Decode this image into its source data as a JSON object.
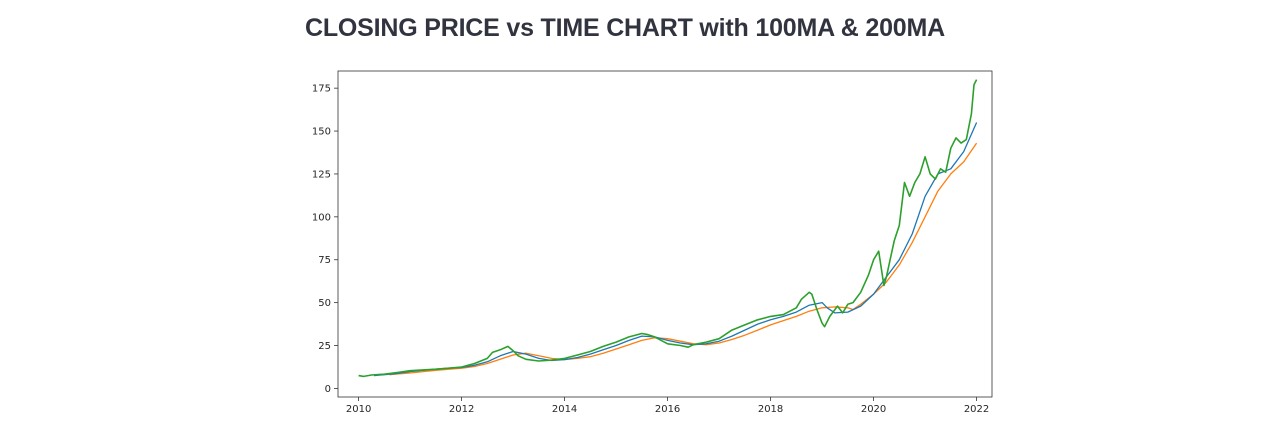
{
  "page": {
    "title": "CLOSING PRICE vs TIME CHART with 100MA & 200MA"
  },
  "chart_data": {
    "type": "line",
    "title": "",
    "xlabel": "",
    "ylabel": "",
    "xlim": [
      2009.6,
      2022.3
    ],
    "ylim": [
      -5,
      185
    ],
    "grid": false,
    "legend": "none",
    "x_ticks": [
      2010,
      2012,
      2014,
      2016,
      2018,
      2020,
      2022
    ],
    "y_ticks": [
      0,
      25,
      50,
      75,
      100,
      125,
      150,
      175
    ],
    "x_tick_labels": [
      "2010",
      "2012",
      "2014",
      "2016",
      "2018",
      "2020",
      "2022"
    ],
    "y_tick_labels": [
      "0",
      "25",
      "50",
      "75",
      "100",
      "125",
      "150",
      "175"
    ],
    "series": [
      {
        "color": "#2ca02c",
        "points": [
          [
            2010.0,
            7.5
          ],
          [
            2010.1,
            7.0
          ],
          [
            2010.25,
            7.8
          ],
          [
            2010.5,
            8.3
          ],
          [
            2010.75,
            9.3
          ],
          [
            2011.0,
            10.3
          ],
          [
            2011.25,
            10.8
          ],
          [
            2011.5,
            11.2
          ],
          [
            2011.75,
            11.8
          ],
          [
            2012.0,
            12.5
          ],
          [
            2012.25,
            14.5
          ],
          [
            2012.5,
            17.5
          ],
          [
            2012.6,
            21.0
          ],
          [
            2012.75,
            22.5
          ],
          [
            2012.9,
            24.5
          ],
          [
            2013.0,
            22.0
          ],
          [
            2013.1,
            19.0
          ],
          [
            2013.25,
            17.0
          ],
          [
            2013.5,
            16.0
          ],
          [
            2013.75,
            16.5
          ],
          [
            2014.0,
            17.5
          ],
          [
            2014.25,
            19.5
          ],
          [
            2014.5,
            21.5
          ],
          [
            2014.75,
            24.5
          ],
          [
            2015.0,
            27.0
          ],
          [
            2015.25,
            30.0
          ],
          [
            2015.5,
            32.0
          ],
          [
            2015.6,
            31.5
          ],
          [
            2015.75,
            30.0
          ],
          [
            2016.0,
            26.0
          ],
          [
            2016.25,
            25.0
          ],
          [
            2016.4,
            24.0
          ],
          [
            2016.5,
            25.5
          ],
          [
            2016.75,
            27.0
          ],
          [
            2017.0,
            29.0
          ],
          [
            2017.25,
            34.0
          ],
          [
            2017.5,
            37.0
          ],
          [
            2017.75,
            40.0
          ],
          [
            2018.0,
            42.0
          ],
          [
            2018.25,
            43.0
          ],
          [
            2018.5,
            47.0
          ],
          [
            2018.6,
            52.0
          ],
          [
            2018.75,
            56.0
          ],
          [
            2018.8,
            55.0
          ],
          [
            2018.9,
            46.0
          ],
          [
            2019.0,
            38.0
          ],
          [
            2019.05,
            36.0
          ],
          [
            2019.15,
            42.0
          ],
          [
            2019.3,
            48.0
          ],
          [
            2019.4,
            44.0
          ],
          [
            2019.5,
            49.0
          ],
          [
            2019.6,
            50.0
          ],
          [
            2019.75,
            56.0
          ],
          [
            2019.9,
            66.0
          ],
          [
            2020.0,
            75.0
          ],
          [
            2020.1,
            80.0
          ],
          [
            2020.2,
            60.0
          ],
          [
            2020.25,
            65.0
          ],
          [
            2020.4,
            86.0
          ],
          [
            2020.5,
            95.0
          ],
          [
            2020.6,
            120.0
          ],
          [
            2020.7,
            112.0
          ],
          [
            2020.8,
            120.0
          ],
          [
            2020.9,
            125.0
          ],
          [
            2021.0,
            135.0
          ],
          [
            2021.1,
            125.0
          ],
          [
            2021.2,
            122.0
          ],
          [
            2021.3,
            128.0
          ],
          [
            2021.4,
            126.0
          ],
          [
            2021.5,
            140.0
          ],
          [
            2021.6,
            146.0
          ],
          [
            2021.7,
            143.0
          ],
          [
            2021.8,
            145.0
          ],
          [
            2021.9,
            160.0
          ],
          [
            2021.95,
            177.0
          ],
          [
            2022.0,
            180.0
          ]
        ]
      },
      {
        "color": "#1f77b4",
        "points": [
          [
            2010.3,
            7.5
          ],
          [
            2010.5,
            8.0
          ],
          [
            2010.75,
            8.7
          ],
          [
            2011.0,
            9.8
          ],
          [
            2011.25,
            10.5
          ],
          [
            2011.5,
            11.2
          ],
          [
            2011.75,
            11.8
          ],
          [
            2012.0,
            12.2
          ],
          [
            2012.25,
            13.5
          ],
          [
            2012.5,
            15.5
          ],
          [
            2012.75,
            19.0
          ],
          [
            2013.0,
            21.5
          ],
          [
            2013.25,
            20.0
          ],
          [
            2013.5,
            17.5
          ],
          [
            2013.75,
            16.3
          ],
          [
            2014.0,
            16.8
          ],
          [
            2014.25,
            18.0
          ],
          [
            2014.5,
            20.0
          ],
          [
            2014.75,
            22.5
          ],
          [
            2015.0,
            25.0
          ],
          [
            2015.25,
            28.0
          ],
          [
            2015.5,
            30.5
          ],
          [
            2015.75,
            30.0
          ],
          [
            2016.0,
            28.0
          ],
          [
            2016.25,
            26.5
          ],
          [
            2016.5,
            25.5
          ],
          [
            2016.75,
            26.0
          ],
          [
            2017.0,
            27.5
          ],
          [
            2017.25,
            30.5
          ],
          [
            2017.5,
            34.0
          ],
          [
            2017.75,
            37.5
          ],
          [
            2018.0,
            40.0
          ],
          [
            2018.25,
            42.0
          ],
          [
            2018.5,
            44.5
          ],
          [
            2018.75,
            48.5
          ],
          [
            2019.0,
            50.0
          ],
          [
            2019.1,
            47.0
          ],
          [
            2019.25,
            44.0
          ],
          [
            2019.5,
            44.5
          ],
          [
            2019.75,
            48.0
          ],
          [
            2020.0,
            55.0
          ],
          [
            2020.25,
            65.0
          ],
          [
            2020.5,
            75.0
          ],
          [
            2020.75,
            90.0
          ],
          [
            2021.0,
            112.0
          ],
          [
            2021.25,
            125.0
          ],
          [
            2021.5,
            128.0
          ],
          [
            2021.75,
            138.0
          ],
          [
            2022.0,
            155.0
          ]
        ]
      },
      {
        "color": "#ff7f0e",
        "points": [
          [
            2010.6,
            8.0
          ],
          [
            2010.75,
            8.4
          ],
          [
            2011.0,
            9.0
          ],
          [
            2011.25,
            9.8
          ],
          [
            2011.5,
            10.5
          ],
          [
            2011.75,
            11.2
          ],
          [
            2012.0,
            11.8
          ],
          [
            2012.25,
            12.8
          ],
          [
            2012.5,
            14.5
          ],
          [
            2012.75,
            17.0
          ],
          [
            2013.0,
            19.5
          ],
          [
            2013.25,
            20.5
          ],
          [
            2013.5,
            19.0
          ],
          [
            2013.75,
            17.5
          ],
          [
            2014.0,
            16.8
          ],
          [
            2014.25,
            17.5
          ],
          [
            2014.5,
            18.5
          ],
          [
            2014.75,
            20.5
          ],
          [
            2015.0,
            23.0
          ],
          [
            2015.25,
            25.5
          ],
          [
            2015.5,
            28.0
          ],
          [
            2015.75,
            29.5
          ],
          [
            2016.0,
            29.0
          ],
          [
            2016.25,
            27.5
          ],
          [
            2016.5,
            26.0
          ],
          [
            2016.75,
            25.5
          ],
          [
            2017.0,
            26.5
          ],
          [
            2017.25,
            28.5
          ],
          [
            2017.5,
            31.0
          ],
          [
            2017.75,
            34.0
          ],
          [
            2018.0,
            37.0
          ],
          [
            2018.25,
            39.5
          ],
          [
            2018.5,
            42.0
          ],
          [
            2018.75,
            45.0
          ],
          [
            2019.0,
            47.0
          ],
          [
            2019.25,
            47.5
          ],
          [
            2019.5,
            47.0
          ],
          [
            2019.6,
            46.0
          ],
          [
            2019.75,
            49.0
          ],
          [
            2020.0,
            55.0
          ],
          [
            2020.25,
            62.0
          ],
          [
            2020.5,
            72.0
          ],
          [
            2020.75,
            85.0
          ],
          [
            2021.0,
            100.0
          ],
          [
            2021.25,
            115.0
          ],
          [
            2021.5,
            125.0
          ],
          [
            2021.75,
            132.0
          ],
          [
            2022.0,
            143.0
          ]
        ]
      }
    ]
  }
}
